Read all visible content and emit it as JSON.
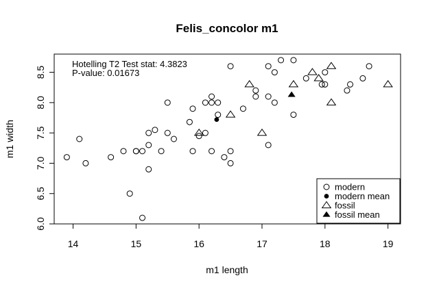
{
  "chart_data": {
    "type": "scatter",
    "title": "Felis_concolor m1",
    "xlabel": "m1 length",
    "ylabel": "m1 width",
    "xlim": [
      13.7,
      19.2
    ],
    "ylim": [
      6.0,
      8.8
    ],
    "x_ticks": [
      14,
      15,
      16,
      17,
      18,
      19
    ],
    "y_ticks": [
      6.0,
      6.5,
      7.0,
      7.5,
      8.0,
      8.5
    ],
    "y_tick_labels": [
      "6.0",
      "6.5",
      "7.0",
      "7.5",
      "8.0",
      "8.5"
    ],
    "annotation_lines": [
      "Hotelling T2 Test stat:  4.3823",
      "P-value:  0.01673"
    ],
    "legend_position": "bottom-right",
    "series": [
      {
        "name": "modern",
        "marker": "open-circle",
        "points": [
          [
            13.9,
            7.1
          ],
          [
            14.1,
            7.4
          ],
          [
            14.2,
            7.0
          ],
          [
            14.6,
            7.1
          ],
          [
            14.8,
            7.2
          ],
          [
            14.9,
            6.5
          ],
          [
            15.0,
            7.2
          ],
          [
            15.0,
            7.2
          ],
          [
            15.1,
            6.1
          ],
          [
            15.1,
            7.2
          ],
          [
            15.2,
            7.5
          ],
          [
            15.2,
            7.3
          ],
          [
            15.2,
            6.9
          ],
          [
            15.3,
            7.55
          ],
          [
            15.4,
            7.2
          ],
          [
            15.5,
            7.5
          ],
          [
            15.5,
            8.0
          ],
          [
            15.6,
            7.4
          ],
          [
            15.85,
            7.68
          ],
          [
            15.9,
            7.9
          ],
          [
            15.9,
            7.2
          ],
          [
            16.0,
            7.45
          ],
          [
            16.1,
            7.5
          ],
          [
            16.1,
            8.0
          ],
          [
            16.2,
            8.1
          ],
          [
            16.2,
            8.0
          ],
          [
            16.2,
            7.2
          ],
          [
            16.3,
            7.8
          ],
          [
            16.3,
            8.0
          ],
          [
            16.4,
            7.1
          ],
          [
            16.5,
            7.0
          ],
          [
            16.5,
            7.2
          ],
          [
            16.5,
            8.6
          ],
          [
            16.7,
            7.9
          ],
          [
            16.9,
            8.2
          ],
          [
            16.9,
            8.1
          ],
          [
            17.1,
            8.6
          ],
          [
            17.1,
            8.1
          ],
          [
            17.1,
            7.3
          ],
          [
            17.2,
            8.5
          ],
          [
            17.2,
            8.0
          ],
          [
            17.3,
            8.7
          ],
          [
            17.5,
            8.7
          ],
          [
            17.5,
            7.8
          ],
          [
            17.7,
            8.4
          ],
          [
            17.95,
            8.3
          ],
          [
            18.0,
            8.5
          ],
          [
            18.0,
            8.3
          ],
          [
            18.35,
            8.2
          ],
          [
            18.4,
            8.3
          ],
          [
            18.6,
            8.4
          ],
          [
            18.7,
            8.6
          ]
        ]
      },
      {
        "name": "modern mean",
        "marker": "filled-circle",
        "points": [
          [
            16.28,
            7.72
          ]
        ]
      },
      {
        "name": "fossil",
        "marker": "open-triangle",
        "points": [
          [
            16.0,
            7.5
          ],
          [
            16.5,
            7.8
          ],
          [
            16.8,
            8.3
          ],
          [
            17.0,
            7.5
          ],
          [
            17.5,
            8.3
          ],
          [
            17.8,
            8.5
          ],
          [
            17.9,
            8.4
          ],
          [
            18.1,
            8.6
          ],
          [
            18.1,
            8.0
          ],
          [
            19.0,
            8.3
          ]
        ]
      },
      {
        "name": "fossil mean",
        "marker": "filled-triangle",
        "points": [
          [
            17.47,
            8.13
          ]
        ]
      }
    ]
  }
}
